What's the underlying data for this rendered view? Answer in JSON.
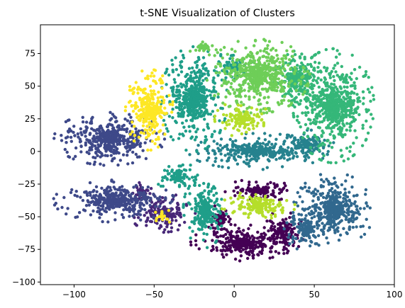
{
  "chart_data": {
    "type": "scatter",
    "title": "t-SNE Visualization of Clusters",
    "xlabel": "",
    "ylabel": "",
    "xlim": [
      -121,
      100
    ],
    "ylim": [
      -102,
      97
    ],
    "x_ticks": [
      -100,
      -50,
      0,
      50,
      100
    ],
    "y_ticks": [
      -100,
      -75,
      -50,
      -25,
      0,
      25,
      50,
      75
    ],
    "grid": false,
    "legend": "none",
    "colormap": "viridis",
    "clusters": [
      {
        "color": "#440154",
        "regions": [
          {
            "cx": 5,
            "cy": -70,
            "rx": 28,
            "ry": 12
          },
          {
            "cx": 30,
            "cy": -62,
            "rx": 12,
            "ry": 14
          },
          {
            "cx": -8,
            "cy": -52,
            "rx": 8,
            "ry": 10
          },
          {
            "cx": 15,
            "cy": -30,
            "rx": 18,
            "ry": 8
          }
        ]
      },
      {
        "color": "#482878",
        "regions": [
          {
            "cx": -45,
            "cy": -47,
            "rx": 18,
            "ry": 13
          },
          {
            "cx": -58,
            "cy": -30,
            "rx": 8,
            "ry": 6
          }
        ]
      },
      {
        "color": "#3e4989",
        "regions": [
          {
            "cx": -78,
            "cy": 10,
            "rx": 30,
            "ry": 18
          },
          {
            "cx": -75,
            "cy": -38,
            "rx": 33,
            "ry": 14
          }
        ]
      },
      {
        "color": "#31688e",
        "regions": [
          {
            "cx": 62,
            "cy": -45,
            "rx": 22,
            "ry": 25
          },
          {
            "cx": 45,
            "cy": -60,
            "rx": 12,
            "ry": 14
          }
        ]
      },
      {
        "color": "#26828e",
        "regions": [
          {
            "cx": 15,
            "cy": 0,
            "rx": 38,
            "ry": 12
          },
          {
            "cx": 45,
            "cy": 5,
            "rx": 15,
            "ry": 10
          }
        ]
      },
      {
        "color": "#1f9e89",
        "regions": [
          {
            "cx": -25,
            "cy": 40,
            "rx": 18,
            "ry": 35
          },
          {
            "cx": -35,
            "cy": -20,
            "rx": 12,
            "ry": 10
          },
          {
            "cx": -18,
            "cy": -45,
            "rx": 12,
            "ry": 25
          },
          {
            "cx": 0,
            "cy": 65,
            "rx": 10,
            "ry": 12
          }
        ]
      },
      {
        "color": "#35b779",
        "regions": [
          {
            "cx": 62,
            "cy": 35,
            "rx": 22,
            "ry": 38
          },
          {
            "cx": 40,
            "cy": 55,
            "rx": 15,
            "ry": 20
          }
        ]
      },
      {
        "color": "#6ece58",
        "regions": [
          {
            "cx": 15,
            "cy": 58,
            "rx": 28,
            "ry": 25
          },
          {
            "cx": -20,
            "cy": 80,
            "rx": 8,
            "ry": 6
          }
        ]
      },
      {
        "color": "#b5de2b",
        "regions": [
          {
            "cx": 15,
            "cy": -42,
            "rx": 20,
            "ry": 10
          },
          {
            "cx": 5,
            "cy": 25,
            "rx": 15,
            "ry": 12
          }
        ]
      },
      {
        "color": "#fde725",
        "regions": [
          {
            "cx": -53,
            "cy": 32,
            "rx": 13,
            "ry": 27
          },
          {
            "cx": -45,
            "cy": -50,
            "rx": 5,
            "ry": 6
          }
        ]
      }
    ]
  }
}
